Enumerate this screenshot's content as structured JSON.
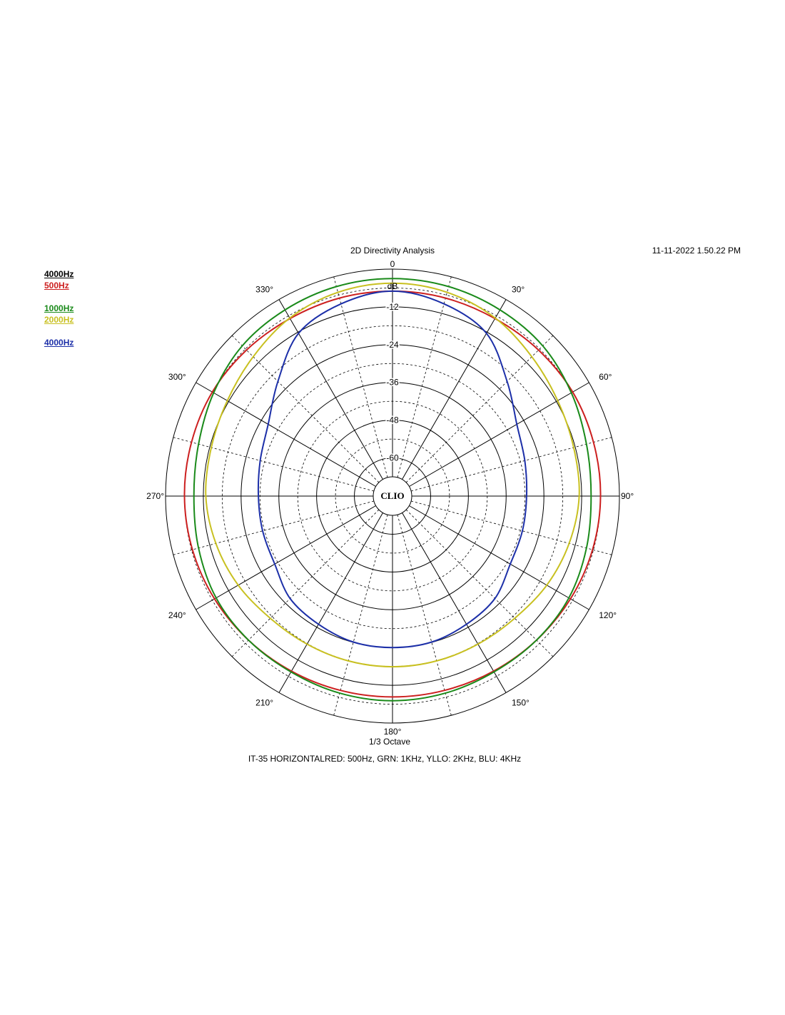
{
  "header": {
    "title": "2D Directivity Analysis",
    "timestamp": "11-11-2022 1.50.22 PM"
  },
  "legend": {
    "top_entries": [
      {
        "label": "4000Hz",
        "color": "#000000"
      },
      {
        "label": "500Hz",
        "color": "#cc1f1f"
      }
    ],
    "middle_entries": [
      {
        "label": "1000Hz",
        "color": "#1a8a1a"
      },
      {
        "label": "2000Hz",
        "color": "#c8c020"
      }
    ],
    "bottom_entries": [
      {
        "label": "4000Hz",
        "color": "#1c2fa8"
      }
    ]
  },
  "footer": {
    "smoothing": "1/3 Octave",
    "caption": "IT-35 HORIZONTALRED: 500Hz, GRN: 1KHz, YLLO: 2KHz, BLU: 4KHz"
  },
  "logo": {
    "text": "CLIO"
  },
  "chart_data": {
    "type": "polar",
    "unit_label": "dB",
    "r_ticks": [
      0,
      -12,
      -24,
      -36,
      -48,
      -60
    ],
    "r_range": [
      -66,
      0
    ],
    "angle_labels": [
      "0",
      "30°",
      "60°",
      "90°",
      "120°",
      "150°",
      "180°",
      "210°",
      "240°",
      "270°",
      "300°",
      "330°"
    ],
    "angles_deg": [
      0,
      15,
      30,
      45,
      60,
      75,
      90,
      105,
      120,
      135,
      150,
      165,
      180,
      195,
      210,
      225,
      240,
      255,
      270,
      285,
      300,
      315,
      330,
      345
    ],
    "grid": true,
    "series": [
      {
        "color": "#cc1f1f",
        "values": [
          -7,
          -7,
          -7,
          -6.5,
          -6,
          -6,
          -6,
          -6.3,
          -6.8,
          -7.4,
          -7.9,
          -8.2,
          -8.3,
          -8.2,
          -7.9,
          -7.4,
          -6.8,
          -6.3,
          -6,
          -6,
          -6,
          -6.5,
          -7,
          -7
        ]
      },
      {
        "color": "#1a8a1a",
        "values": [
          -3,
          -3.2,
          -3.8,
          -4.6,
          -6.5,
          -8.3,
          -9,
          -8.3,
          -7.4,
          -7.4,
          -7.6,
          -7.3,
          -7.1,
          -7.3,
          -7.6,
          -7.4,
          -7.4,
          -8.3,
          -9,
          -8.3,
          -6.5,
          -4.6,
          -3.8,
          -3.2
        ]
      },
      {
        "color": "#c8c020",
        "values": [
          -4.5,
          -5.1,
          -6.8,
          -9.5,
          -11.5,
          -12.5,
          -12.8,
          -14,
          -15.5,
          -17.2,
          -17.8,
          -17.9,
          -17.9,
          -17.9,
          -17.8,
          -17.2,
          -15.5,
          -14,
          -12.8,
          -12.5,
          -11.5,
          -9.5,
          -6.8,
          -5.1
        ]
      },
      {
        "color": "#1c2fa8",
        "values": [
          -7,
          -8.9,
          -12.4,
          -20.6,
          -26.5,
          -28.6,
          -29.5,
          -29.4,
          -28.9,
          -26.1,
          -25.1,
          -24.1,
          -24,
          -24.1,
          -25.1,
          -26.1,
          -28.9,
          -29.4,
          -29.5,
          -28.6,
          -26.5,
          -20.6,
          -12.4,
          -8.9
        ]
      }
    ]
  }
}
